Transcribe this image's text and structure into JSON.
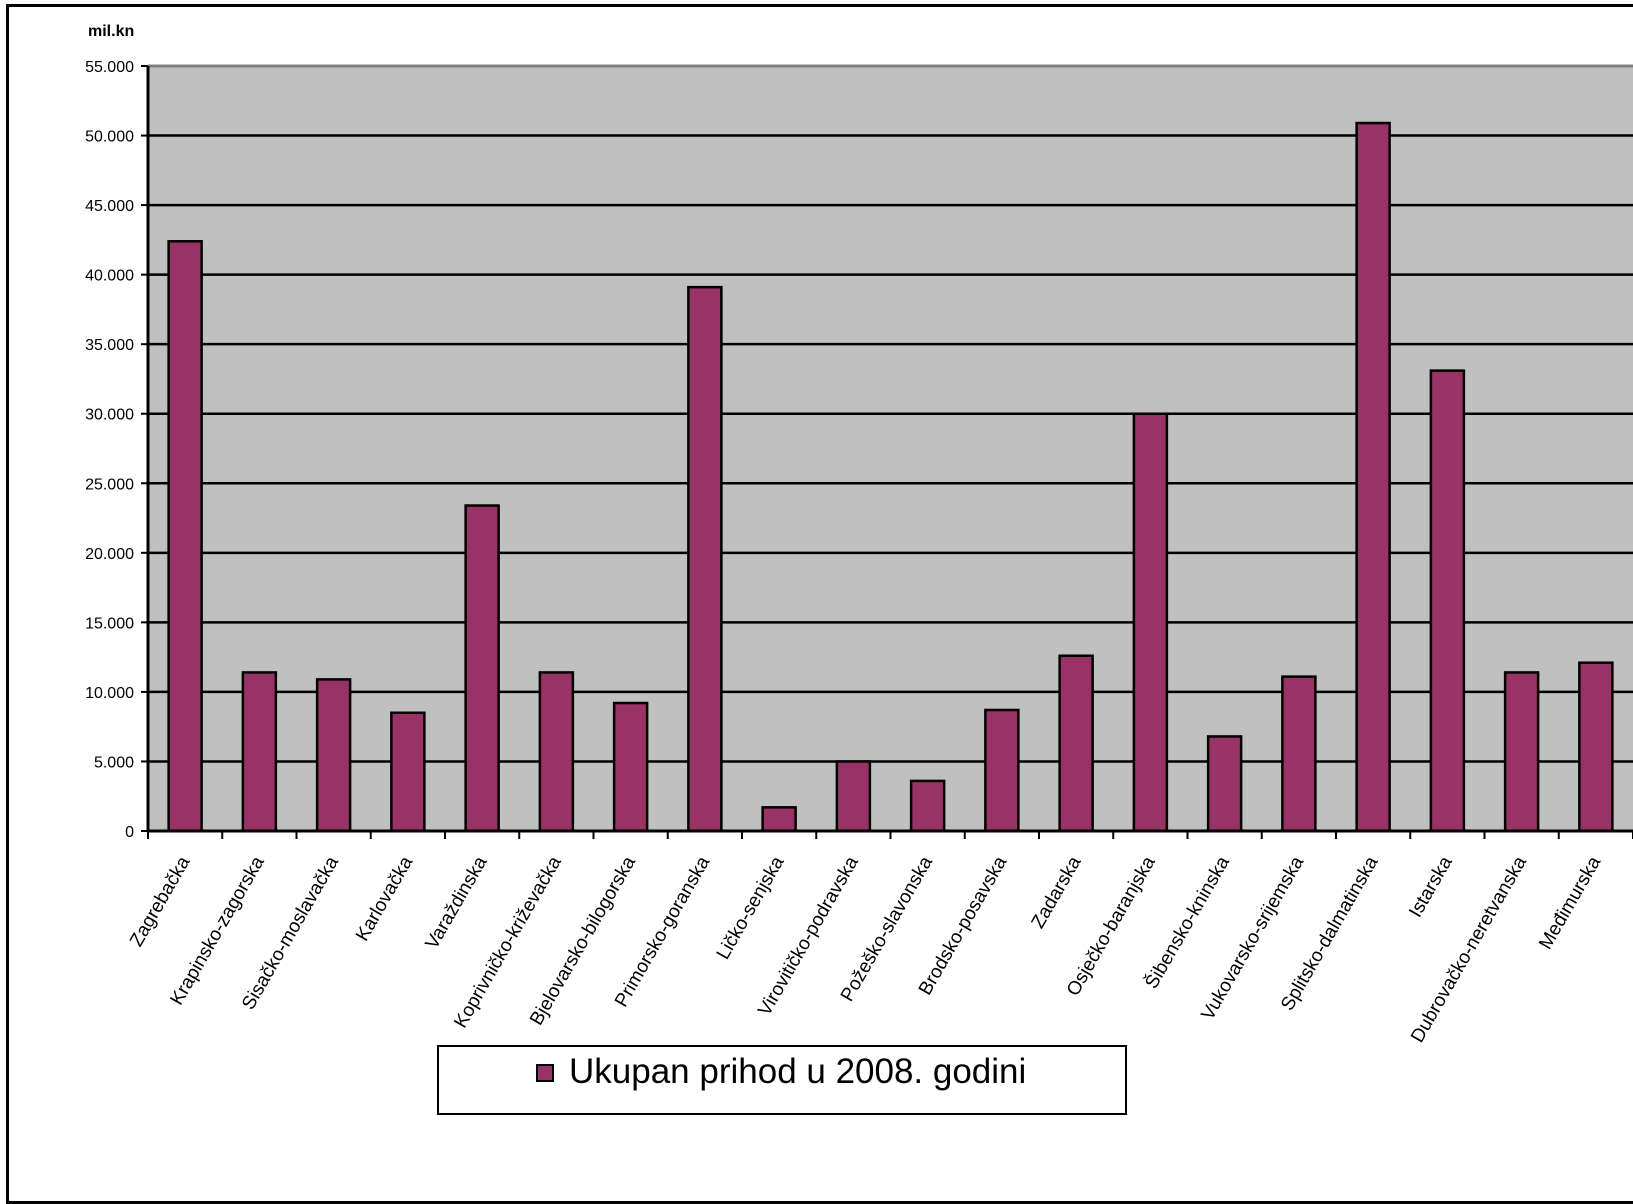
{
  "chart_data": {
    "type": "bar",
    "unit_label": "mil.kn",
    "categories": [
      "Zagrebačka",
      "Krapinsko-zagorska",
      "Sisačko-moslavačka",
      "Karlovačka",
      "Varaždinska",
      "Koprivničko-križevačka",
      "Bjelovarsko-bilogorska",
      "Primorsko-goranska",
      "Ličko-senjska",
      "Virovitičko-podravska",
      "Požeško-slavonska",
      "Brodsko-posavska",
      "Zadarska",
      "Osječko-baranjska",
      "Šibensko-kninska",
      "Vukovarsko-srijemska",
      "Splitsko-dalmatinska",
      "Istarska",
      "Dubrovačko-neretvanska",
      "Međimurska"
    ],
    "series": [
      {
        "name": "Ukupan prihod u 2008. godini",
        "values": [
          42400,
          11400,
          10900,
          8500,
          23400,
          11400,
          9200,
          39100,
          1700,
          5000,
          3600,
          8700,
          12600,
          30000,
          6800,
          11100,
          50900,
          33100,
          11400,
          12100
        ]
      }
    ],
    "ylim": [
      0,
      55000
    ],
    "yticks": [
      "0",
      "5.000",
      "10.000",
      "15.000",
      "20.000",
      "25.000",
      "30.000",
      "35.000",
      "40.000",
      "45.000",
      "50.000",
      "55.000"
    ],
    "grid": true,
    "legend_position": "bottom",
    "colors": {
      "bar": "#993366",
      "plot_background": "#c0c0c0",
      "gridline": "#000000"
    }
  }
}
